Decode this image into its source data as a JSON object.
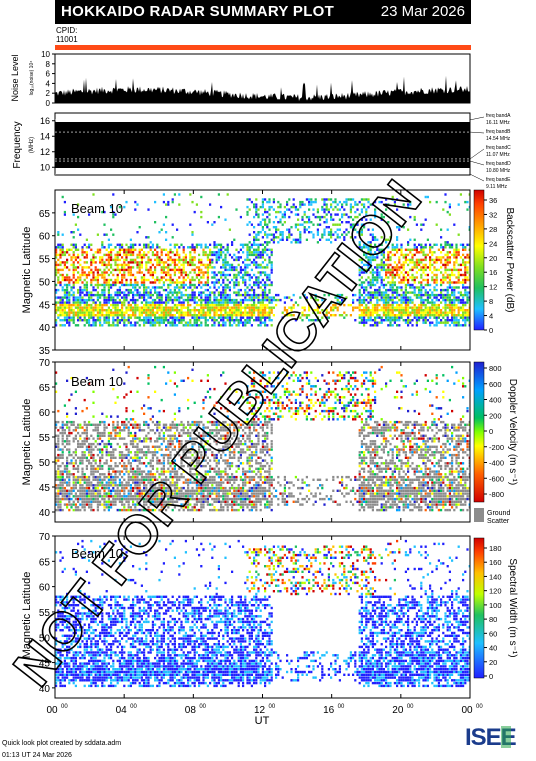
{
  "header": {
    "title": "HOKKAIDO RADAR SUMMARY PLOT",
    "date": "23 Mar 2026"
  },
  "cpid": {
    "label": "CPID:",
    "value": "11001"
  },
  "colors": {
    "cpid_bar": "#ff4a16",
    "ground_scatter": "#8c8c8c",
    "panel_fill": "#000000"
  },
  "noise_panel": {
    "ylabel": "Noise Level",
    "ylabel_sub": "log₁₀(noise) 10⁴",
    "ylim": [
      0,
      10
    ],
    "ticks": [
      "0",
      "2",
      "4",
      "6",
      "8",
      "10"
    ]
  },
  "freq_panel": {
    "ylabel": "Frequency",
    "ylabel_sub": "(MHz)",
    "ylim": [
      9,
      17
    ],
    "ticks": [
      "10",
      "12",
      "14",
      "16"
    ],
    "bands": [
      {
        "name": "freq bandA",
        "value": "16.11 MHz"
      },
      {
        "name": "freq bandB",
        "value": "14.54 MHz"
      },
      {
        "name": "freq bandC",
        "value": "11.07 MHz"
      },
      {
        "name": "freq bandD",
        "value": "10.80 MHz"
      },
      {
        "name": "freq bandE",
        "value": "9.11 MHz"
      }
    ]
  },
  "panels": [
    {
      "id": "power",
      "beam": "Beam 10",
      "ylabel": "Magnetic Latitude",
      "ylim": [
        35,
        70
      ],
      "yticks": [
        "35",
        "40",
        "45",
        "50",
        "55",
        "60",
        "65"
      ],
      "cbar_label": "Backscatter Power (dB)",
      "cbar_ticks": [
        "0",
        "4",
        "8",
        "12",
        "16",
        "20",
        "24",
        "28",
        "32",
        "36"
      ]
    },
    {
      "id": "velocity",
      "beam": "Beam 10",
      "ylabel": "Magnetic Latitude",
      "ylim": [
        38,
        70
      ],
      "yticks": [
        "40",
        "45",
        "50",
        "55",
        "60",
        "65",
        "70"
      ],
      "cbar_label": "Doppler Velocity (m s⁻¹)",
      "cbar_ticks": [
        "-800",
        "-600",
        "-400",
        "-200",
        "0",
        "200",
        "400",
        "600",
        "800"
      ],
      "ground_label_1": "Ground",
      "ground_label_2": "Scatter"
    },
    {
      "id": "width",
      "beam": "Beam 10",
      "ylabel": "Magnetic Latitude",
      "ylim": [
        38,
        70
      ],
      "yticks": [
        "40",
        "45",
        "50",
        "55",
        "60",
        "65",
        "70"
      ],
      "cbar_label": "Spectral Width (m s⁻¹)",
      "cbar_ticks": [
        "0",
        "20",
        "40",
        "60",
        "80",
        "100",
        "120",
        "140",
        "160",
        "180"
      ]
    }
  ],
  "x_axis": {
    "label": "UT",
    "ticks": [
      "00",
      "04",
      "08",
      "12",
      "16",
      "20",
      "00"
    ],
    "tick_sup": "00",
    "xlim": [
      0,
      24
    ]
  },
  "chart_data": {
    "type": "heatmap",
    "title": "HOKKAIDO RADAR SUMMARY PLOT",
    "x_unit": "UT hours",
    "series": [
      {
        "name": "Backscatter Power (dB)",
        "range": [
          0,
          36
        ]
      },
      {
        "name": "Doppler Velocity (m s⁻¹)",
        "range": [
          -800,
          800
        ]
      },
      {
        "name": "Spectral Width (m s⁻¹)",
        "range": [
          0,
          180
        ]
      }
    ]
  },
  "watermark": "NOT FOR PUBLICATION",
  "footer": {
    "line1": "Quick look plot created by sddata.adm",
    "line2": "01:13 UT 24 Mar 2026",
    "logo": "ISEE"
  }
}
